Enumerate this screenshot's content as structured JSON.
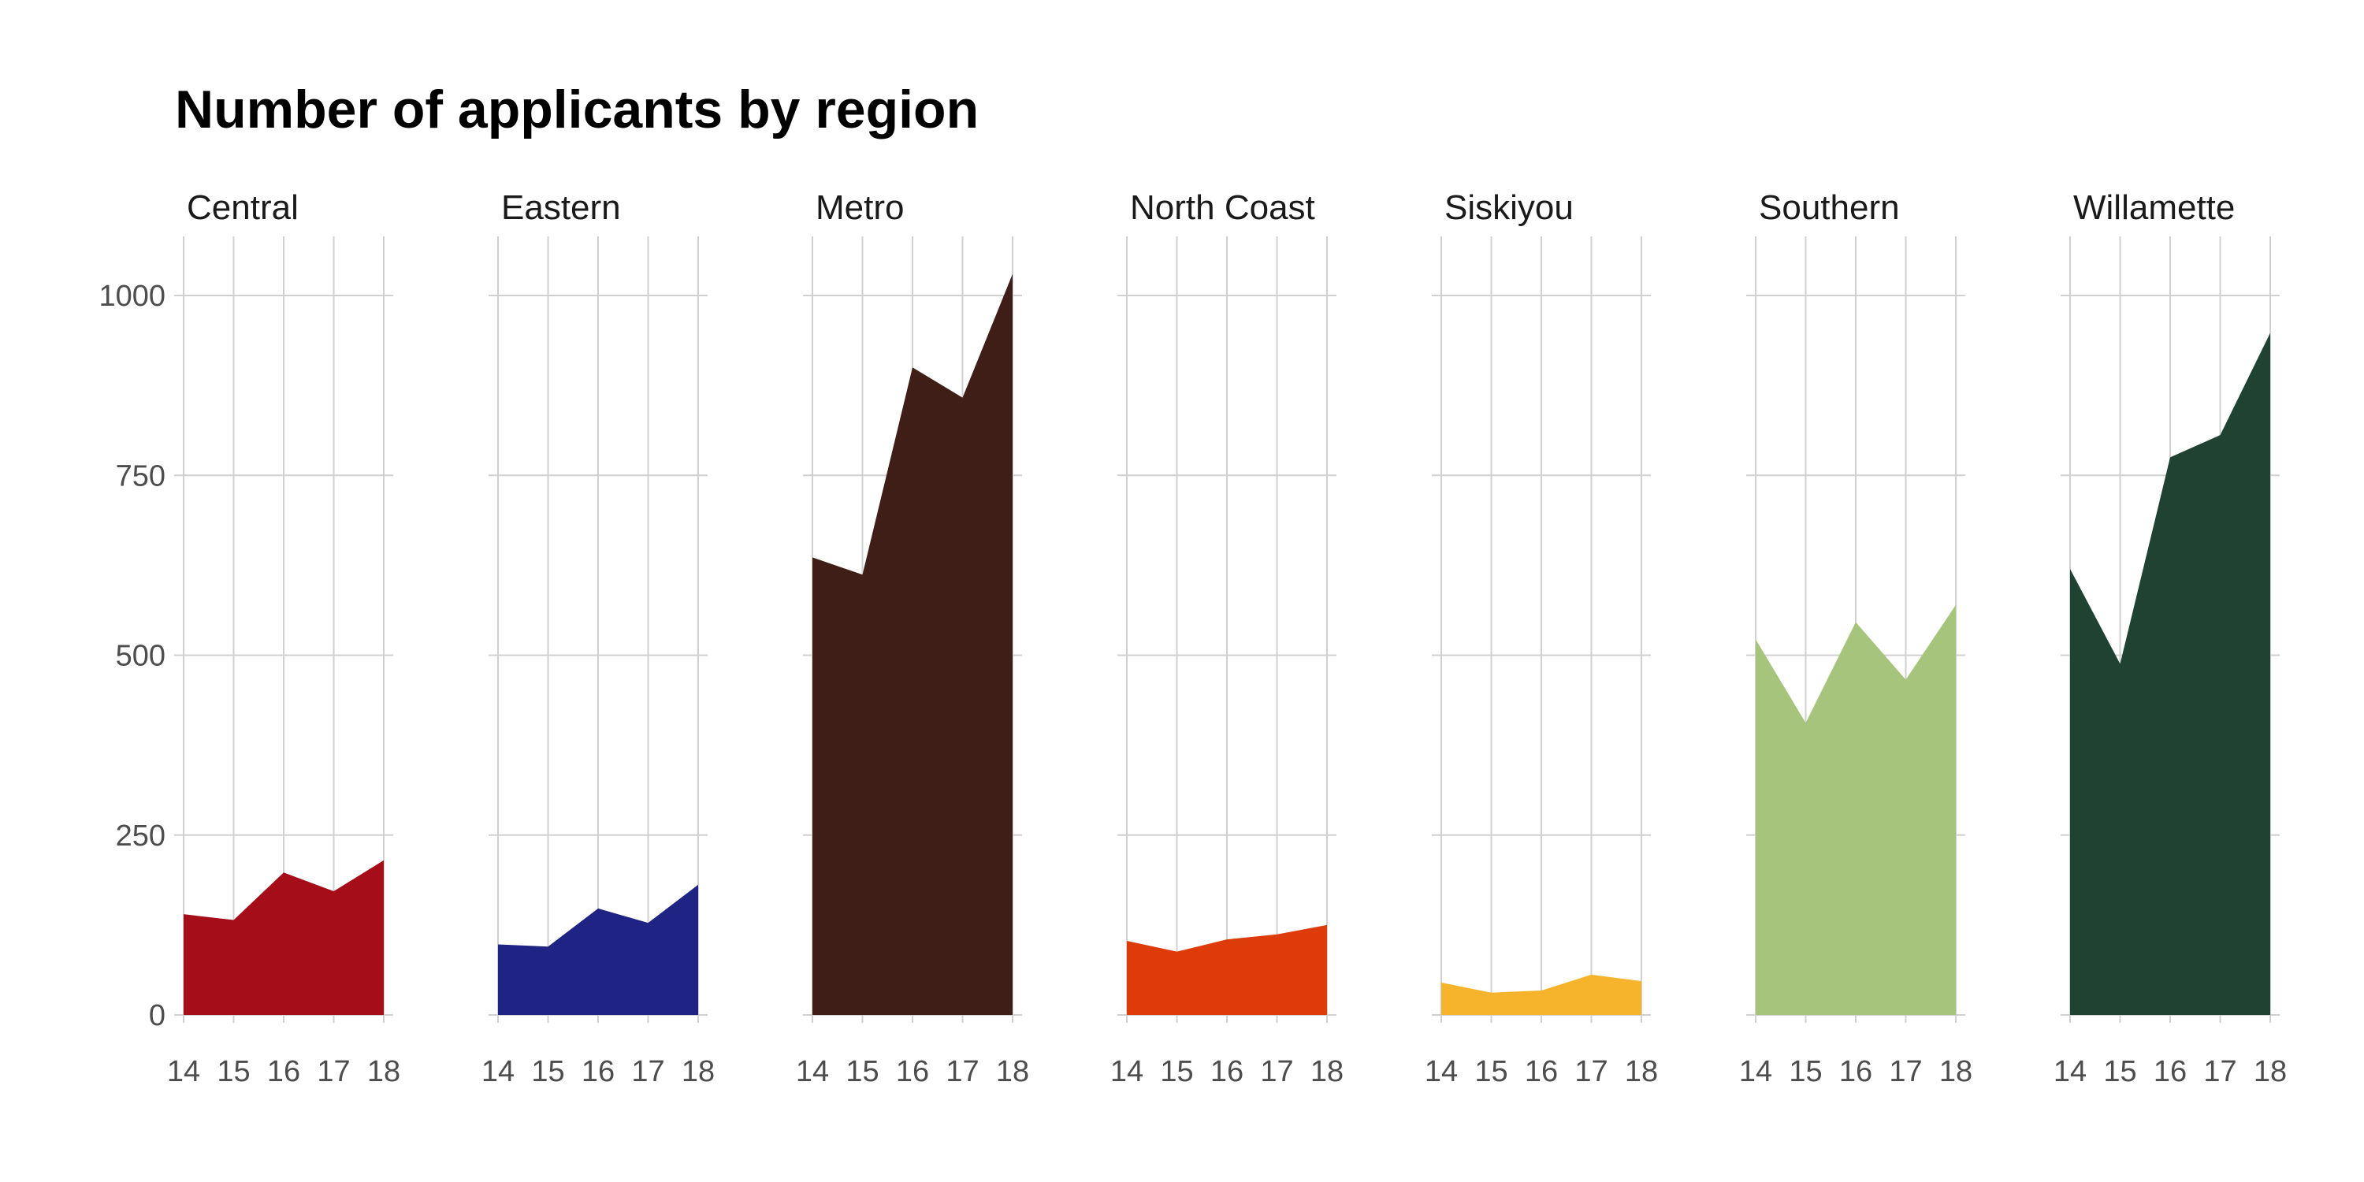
{
  "chart_data": {
    "type": "area",
    "title": "Number of applicants by region",
    "xlabel": "",
    "ylabel": "",
    "x": [
      "14",
      "15",
      "16",
      "17",
      "18"
    ],
    "y_ticks": [
      0,
      250,
      500,
      750,
      1000
    ],
    "y_tick_labels": [
      "0",
      "250",
      "500",
      "750",
      "1000"
    ],
    "ylim": [
      0,
      1080
    ],
    "xlim": [
      "14",
      "18"
    ],
    "grid": true,
    "legend": "none",
    "facets": [
      {
        "name": "Central",
        "color": "#A50E18",
        "values": [
          140,
          132,
          198,
          172,
          215
        ]
      },
      {
        "name": "Eastern",
        "color": "#1F2383",
        "values": [
          98,
          95,
          148,
          128,
          181
        ]
      },
      {
        "name": "Metro",
        "color": "#3E1E17",
        "values": [
          636,
          612,
          900,
          858,
          1030
        ]
      },
      {
        "name": "North Coast",
        "color": "#DE3B0B",
        "values": [
          103,
          88,
          105,
          112,
          125
        ]
      },
      {
        "name": "Siskiyou",
        "color": "#F6B42C",
        "values": [
          45,
          31,
          34,
          56,
          47
        ]
      },
      {
        "name": "Southern",
        "color": "#A7C47C",
        "values": [
          522,
          406,
          546,
          466,
          570
        ]
      },
      {
        "name": "Willamette",
        "color": "#1F4233",
        "values": [
          620,
          488,
          775,
          806,
          948
        ]
      }
    ]
  }
}
